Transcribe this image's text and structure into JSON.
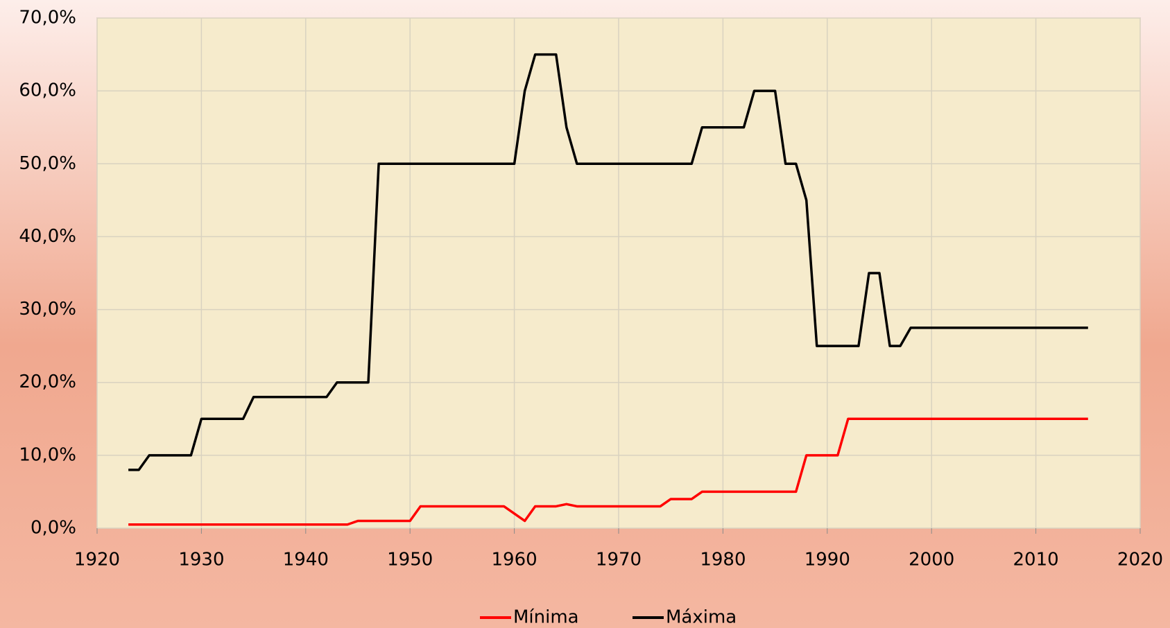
{
  "chart_data": {
    "type": "line",
    "x": [
      1923,
      1924,
      1925,
      1926,
      1927,
      1928,
      1929,
      1930,
      1931,
      1932,
      1933,
      1934,
      1935,
      1936,
      1937,
      1938,
      1939,
      1940,
      1941,
      1942,
      1943,
      1944,
      1945,
      1946,
      1947,
      1948,
      1949,
      1950,
      1951,
      1952,
      1953,
      1954,
      1955,
      1956,
      1957,
      1958,
      1959,
      1960,
      1961,
      1962,
      1963,
      1964,
      1965,
      1966,
      1967,
      1968,
      1969,
      1970,
      1971,
      1972,
      1973,
      1974,
      1975,
      1976,
      1977,
      1978,
      1979,
      1980,
      1981,
      1982,
      1983,
      1984,
      1985,
      1986,
      1987,
      1988,
      1989,
      1990,
      1991,
      1992,
      1993,
      1994,
      1995,
      1996,
      1997,
      1998,
      1999,
      2000,
      2001,
      2002,
      2003,
      2004,
      2005,
      2006,
      2007,
      2008,
      2009,
      2010,
      2011,
      2012,
      2013,
      2014,
      2015
    ],
    "series": [
      {
        "name": "Mínima",
        "color": "#ff0000",
        "values": [
          0.5,
          0.5,
          0.5,
          0.5,
          0.5,
          0.5,
          0.5,
          0.5,
          0.5,
          0.5,
          0.5,
          0.5,
          0.5,
          0.5,
          0.5,
          0.5,
          0.5,
          0.5,
          0.5,
          0.5,
          0.5,
          0.5,
          1,
          1,
          1,
          1,
          1,
          1,
          3,
          3,
          3,
          3,
          3,
          3,
          3,
          3,
          3,
          2,
          1,
          3,
          3,
          3,
          3.3,
          3,
          3,
          3,
          3,
          3,
          3,
          3,
          3,
          3,
          4,
          4,
          4,
          5,
          5,
          5,
          5,
          5,
          5,
          5,
          5,
          5,
          5,
          10,
          10,
          10,
          10,
          15,
          15,
          15,
          15,
          15,
          15,
          15,
          15,
          15,
          15,
          15,
          15,
          15,
          15,
          15,
          15,
          15,
          15,
          15,
          15,
          15,
          15,
          15,
          15
        ]
      },
      {
        "name": "Máxima",
        "color": "#000000",
        "values": [
          8,
          8,
          10,
          10,
          10,
          10,
          10,
          15,
          15,
          15,
          15,
          15,
          18,
          18,
          18,
          18,
          18,
          18,
          18,
          18,
          20,
          20,
          20,
          20,
          50,
          50,
          50,
          50,
          50,
          50,
          50,
          50,
          50,
          50,
          50,
          50,
          50,
          50,
          60,
          65,
          65,
          65,
          55,
          50,
          50,
          50,
          50,
          50,
          50,
          50,
          50,
          50,
          50,
          50,
          50,
          55,
          55,
          55,
          55,
          55,
          60,
          60,
          60,
          50,
          50,
          45,
          25,
          25,
          25,
          25,
          25,
          35,
          35,
          25,
          25,
          27.5,
          27.5,
          27.5,
          27.5,
          27.5,
          27.5,
          27.5,
          27.5,
          27.5,
          27.5,
          27.5,
          27.5,
          27.5,
          27.5,
          27.5,
          27.5,
          27.5,
          27.5
        ]
      }
    ],
    "xlim": [
      1920,
      2020
    ],
    "xticks": [
      1920,
      1930,
      1940,
      1950,
      1960,
      1970,
      1980,
      1990,
      2000,
      2010,
      2020
    ],
    "ylim": [
      0,
      70
    ],
    "yticks": [
      {
        "value": 0,
        "label": "0,0%"
      },
      {
        "value": 10,
        "label": "10,0%"
      },
      {
        "value": 20,
        "label": "20,0%"
      },
      {
        "value": 30,
        "label": "30,0%"
      },
      {
        "value": 40,
        "label": "40,0%"
      },
      {
        "value": 50,
        "label": "50,0%"
      },
      {
        "value": 60,
        "label": "60,0%"
      },
      {
        "value": 70,
        "label": "70,0%"
      }
    ],
    "grid": true,
    "legend": "bottom"
  }
}
